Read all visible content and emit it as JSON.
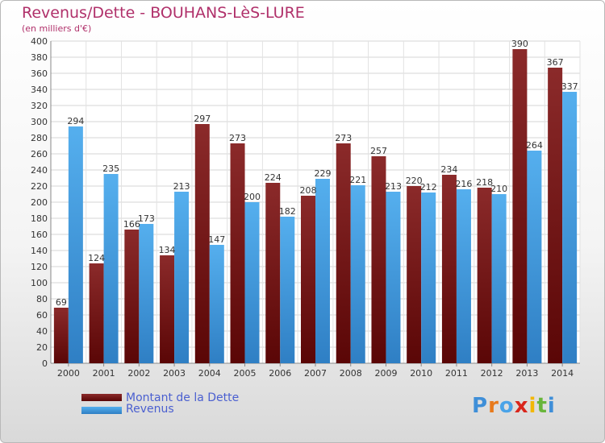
{
  "chart_data": {
    "type": "bar",
    "title": "Revenus/Dette - BOUHANS-LèS-LURE",
    "subtitle": "(en milliers d'€)",
    "xlabel": "",
    "ylabel": "",
    "ylim": [
      0,
      400
    ],
    "ytick_step": 20,
    "grid": true,
    "categories": [
      "2000",
      "2001",
      "2002",
      "2003",
      "2004",
      "2005",
      "2006",
      "2007",
      "2008",
      "2009",
      "2010",
      "2011",
      "2012",
      "2013",
      "2014"
    ],
    "series": [
      {
        "name": "Montant de la Dette",
        "color": "#8b1a1a",
        "values": [
          69,
          124,
          166,
          134,
          297,
          273,
          224,
          208,
          273,
          257,
          220,
          234,
          218,
          390,
          367
        ]
      },
      {
        "name": "Revenus",
        "color": "#4aa3e8",
        "values": [
          294,
          235,
          173,
          213,
          147,
          200,
          182,
          229,
          221,
          213,
          212,
          216,
          210,
          264,
          337
        ]
      }
    ],
    "legend": "bottom-left"
  },
  "logo": {
    "letters": [
      "P",
      "r",
      "o",
      "x",
      "i",
      "t",
      "i"
    ],
    "colors": [
      "#3f8fd8",
      "#e87a1c",
      "#4aa3e8",
      "#d9261c",
      "#f2b705",
      "#68b53a",
      "#3f8fd8"
    ]
  }
}
